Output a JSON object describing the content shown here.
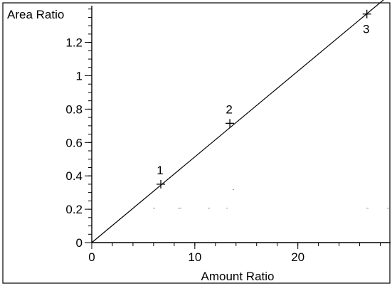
{
  "chart_data": {
    "type": "scatter",
    "xlabel": "Amount Ratio",
    "ylabel": "Area Ratio",
    "xlim": [
      0,
      29
    ],
    "ylim": [
      0,
      1.42
    ],
    "x_ticks": [
      0,
      10,
      20
    ],
    "x_tick_labels": [
      "0",
      "10",
      "20"
    ],
    "x_minor_step": 2,
    "y_ticks": [
      0,
      0.2,
      0.4,
      0.6,
      0.8,
      1.0,
      1.2
    ],
    "y_tick_labels": [
      "0",
      "0.2",
      "0.4",
      "0.6",
      "0.8",
      "1",
      "1.2"
    ],
    "y_minor_step": 0.05,
    "grid": false,
    "legend": "none",
    "points": [
      {
        "label": "1",
        "x": 6.7,
        "y": 0.35
      },
      {
        "label": "2",
        "x": 13.4,
        "y": 0.715
      },
      {
        "label": "3",
        "x": 26.7,
        "y": 1.37
      }
    ],
    "fit_line": {
      "x": [
        0,
        29
      ],
      "y": [
        0,
        1.49
      ]
    },
    "colors": {
      "line": "#000000",
      "marker": "#000000",
      "background": "#ffffff"
    }
  }
}
